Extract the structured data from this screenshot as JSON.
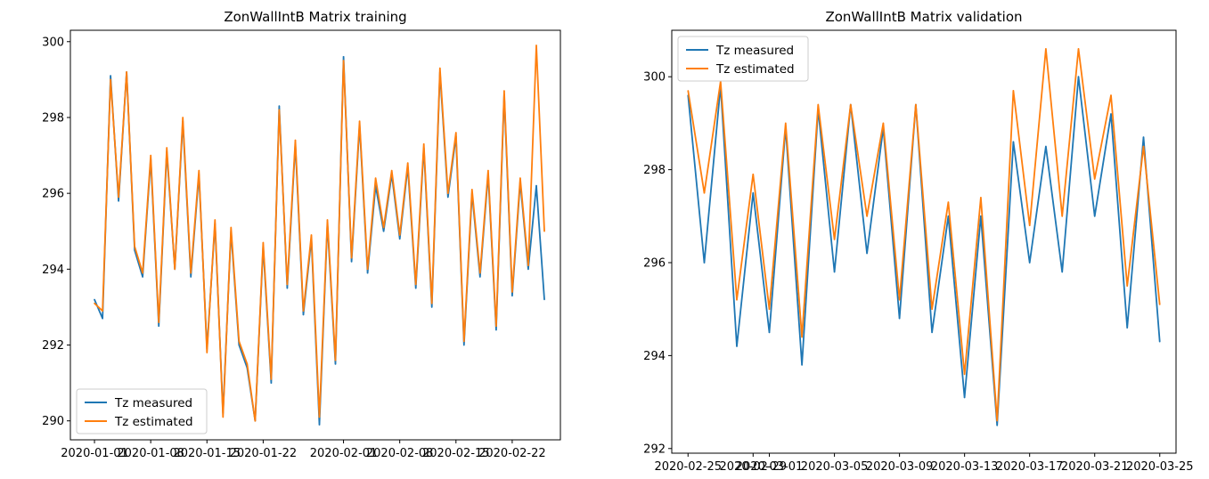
{
  "chart_data": [
    {
      "type": "line",
      "title": "ZonWallIntB Matrix training",
      "xlabel": "",
      "ylabel": "",
      "xlim": [
        "2019-12-29",
        "2020-02-28"
      ],
      "ylim": [
        289.5,
        300.3
      ],
      "y_ticks": [
        290,
        292,
        294,
        296,
        298,
        300
      ],
      "x_ticks": [
        {
          "date": "2020-01-01",
          "label": "2020-01-01"
        },
        {
          "date": "2020-01-08",
          "label": "2020-01-08"
        },
        {
          "date": "2020-01-15",
          "label": "2020-01-15"
        },
        {
          "date": "2020-01-22",
          "label": "2020-01-22"
        },
        {
          "date": "2020-02-01",
          "label": "2020-02-01"
        },
        {
          "date": "2020-02-08",
          "label": "2020-02-08"
        },
        {
          "date": "2020-02-15",
          "label": "2020-02-15"
        },
        {
          "date": "2020-02-22",
          "label": "2020-02-22"
        }
      ],
      "legend": {
        "position": "lower-left"
      },
      "series": [
        {
          "name": "Tz measured",
          "color": "#1f77b4",
          "x": [
            "2020-01-01",
            "2020-01-02",
            "2020-01-03",
            "2020-01-04",
            "2020-01-05",
            "2020-01-06",
            "2020-01-07",
            "2020-01-08",
            "2020-01-09",
            "2020-01-10",
            "2020-01-11",
            "2020-01-12",
            "2020-01-13",
            "2020-01-14",
            "2020-01-15",
            "2020-01-16",
            "2020-01-17",
            "2020-01-18",
            "2020-01-19",
            "2020-01-20",
            "2020-01-21",
            "2020-01-22",
            "2020-01-23",
            "2020-01-24",
            "2020-01-25",
            "2020-01-26",
            "2020-01-27",
            "2020-01-28",
            "2020-01-29",
            "2020-01-30",
            "2020-01-31",
            "2020-02-01",
            "2020-02-02",
            "2020-02-03",
            "2020-02-04",
            "2020-02-05",
            "2020-02-06",
            "2020-02-07",
            "2020-02-08",
            "2020-02-09",
            "2020-02-10",
            "2020-02-11",
            "2020-02-12",
            "2020-02-13",
            "2020-02-14",
            "2020-02-15",
            "2020-02-16",
            "2020-02-17",
            "2020-02-18",
            "2020-02-19",
            "2020-02-20",
            "2020-02-21",
            "2020-02-22",
            "2020-02-23",
            "2020-02-24",
            "2020-02-25",
            "2020-02-26"
          ],
          "values": [
            293.2,
            292.7,
            299.1,
            295.8,
            299.2,
            294.5,
            293.8,
            296.9,
            292.5,
            297.1,
            294.0,
            297.9,
            293.8,
            296.5,
            291.9,
            295.2,
            290.2,
            295.0,
            292.0,
            291.4,
            290.0,
            294.6,
            291.0,
            298.3,
            293.5,
            297.3,
            292.8,
            294.8,
            289.9,
            295.2,
            291.5,
            299.6,
            294.2,
            297.8,
            293.9,
            296.2,
            295.0,
            296.5,
            294.8,
            296.7,
            293.5,
            297.2,
            293.0,
            299.2,
            295.9,
            297.5,
            292.0,
            296.0,
            293.8,
            296.5,
            292.4,
            298.6,
            293.3,
            296.3,
            294.0,
            296.2,
            293.2
          ]
        },
        {
          "name": "Tz estimated",
          "color": "#ff7f0e",
          "x": [
            "2020-01-01",
            "2020-01-02",
            "2020-01-03",
            "2020-01-04",
            "2020-01-05",
            "2020-01-06",
            "2020-01-07",
            "2020-01-08",
            "2020-01-09",
            "2020-01-10",
            "2020-01-11",
            "2020-01-12",
            "2020-01-13",
            "2020-01-14",
            "2020-01-15",
            "2020-01-16",
            "2020-01-17",
            "2020-01-18",
            "2020-01-19",
            "2020-01-20",
            "2020-01-21",
            "2020-01-22",
            "2020-01-23",
            "2020-01-24",
            "2020-01-25",
            "2020-01-26",
            "2020-01-27",
            "2020-01-28",
            "2020-01-29",
            "2020-01-30",
            "2020-01-31",
            "2020-02-01",
            "2020-02-02",
            "2020-02-03",
            "2020-02-04",
            "2020-02-05",
            "2020-02-06",
            "2020-02-07",
            "2020-02-08",
            "2020-02-09",
            "2020-02-10",
            "2020-02-11",
            "2020-02-12",
            "2020-02-13",
            "2020-02-14",
            "2020-02-15",
            "2020-02-16",
            "2020-02-17",
            "2020-02-18",
            "2020-02-19",
            "2020-02-20",
            "2020-02-21",
            "2020-02-22",
            "2020-02-23",
            "2020-02-24",
            "2020-02-25",
            "2020-02-26"
          ],
          "values": [
            293.1,
            292.9,
            299.0,
            295.9,
            299.2,
            294.6,
            293.9,
            297.0,
            292.6,
            297.2,
            294.0,
            298.0,
            293.9,
            296.6,
            291.8,
            295.3,
            290.1,
            295.1,
            292.1,
            291.5,
            290.0,
            294.7,
            291.1,
            298.2,
            293.6,
            297.4,
            292.9,
            294.9,
            290.1,
            295.3,
            291.6,
            299.5,
            294.3,
            297.9,
            294.0,
            296.4,
            295.1,
            296.6,
            294.9,
            296.8,
            293.6,
            297.3,
            293.1,
            299.3,
            296.0,
            297.6,
            292.1,
            296.1,
            293.9,
            296.6,
            292.5,
            298.7,
            293.4,
            296.4,
            294.1,
            299.9,
            295.0
          ]
        }
      ]
    },
    {
      "type": "line",
      "title": "ZonWallIntB Matrix validation",
      "xlabel": "",
      "ylabel": "",
      "xlim": [
        "2020-02-24",
        "2020-03-26"
      ],
      "ylim": [
        291.9,
        301.0
      ],
      "y_ticks": [
        292,
        294,
        296,
        298,
        300
      ],
      "x_ticks": [
        {
          "date": "2020-02-25",
          "label": "2020-02-25"
        },
        {
          "date": "2020-02-29",
          "label": "2020-02-29"
        },
        {
          "date": "2020-03-01",
          "label": "2020-03-01"
        },
        {
          "date": "2020-03-05",
          "label": "2020-03-05"
        },
        {
          "date": "2020-03-09",
          "label": "2020-03-09"
        },
        {
          "date": "2020-03-13",
          "label": "2020-03-13"
        },
        {
          "date": "2020-03-17",
          "label": "2020-03-17"
        },
        {
          "date": "2020-03-21",
          "label": "2020-03-21"
        },
        {
          "date": "2020-03-25",
          "label": "2020-03-25"
        }
      ],
      "legend": {
        "position": "upper-left"
      },
      "series": [
        {
          "name": "Tz measured",
          "color": "#1f77b4",
          "x": [
            "2020-02-25",
            "2020-02-26",
            "2020-02-27",
            "2020-02-28",
            "2020-02-29",
            "2020-03-01",
            "2020-03-02",
            "2020-03-03",
            "2020-03-04",
            "2020-03-05",
            "2020-03-06",
            "2020-03-07",
            "2020-03-08",
            "2020-03-09",
            "2020-03-10",
            "2020-03-11",
            "2020-03-12",
            "2020-03-13",
            "2020-03-14",
            "2020-03-15",
            "2020-03-16",
            "2020-03-17",
            "2020-03-18",
            "2020-03-19",
            "2020-03-20",
            "2020-03-21",
            "2020-03-22",
            "2020-03-23",
            "2020-03-24",
            "2020-03-25"
          ],
          "values": [
            299.6,
            296.0,
            299.8,
            294.2,
            297.5,
            294.5,
            298.9,
            293.8,
            299.3,
            295.8,
            299.4,
            296.2,
            298.9,
            294.8,
            299.4,
            294.5,
            297.0,
            293.1,
            297.0,
            292.5,
            298.6,
            296.0,
            298.5,
            295.8,
            300.0,
            297.0,
            299.2,
            294.6,
            298.7,
            294.3
          ]
        },
        {
          "name": "Tz estimated",
          "color": "#ff7f0e",
          "x": [
            "2020-02-25",
            "2020-02-26",
            "2020-02-27",
            "2020-02-28",
            "2020-02-29",
            "2020-03-01",
            "2020-03-02",
            "2020-03-03",
            "2020-03-04",
            "2020-03-05",
            "2020-03-06",
            "2020-03-07",
            "2020-03-08",
            "2020-03-09",
            "2020-03-10",
            "2020-03-11",
            "2020-03-12",
            "2020-03-13",
            "2020-03-14",
            "2020-03-15",
            "2020-03-16",
            "2020-03-17",
            "2020-03-18",
            "2020-03-19",
            "2020-03-20",
            "2020-03-21",
            "2020-03-22",
            "2020-03-23",
            "2020-03-24",
            "2020-03-25"
          ],
          "values": [
            299.7,
            297.5,
            299.9,
            295.2,
            297.9,
            295.0,
            299.0,
            294.4,
            299.4,
            296.5,
            299.4,
            297.0,
            299.0,
            295.2,
            299.4,
            295.0,
            297.3,
            293.6,
            297.4,
            292.6,
            299.7,
            296.8,
            300.6,
            297.0,
            300.6,
            297.8,
            299.6,
            295.5,
            298.5,
            295.1
          ]
        }
      ]
    }
  ]
}
